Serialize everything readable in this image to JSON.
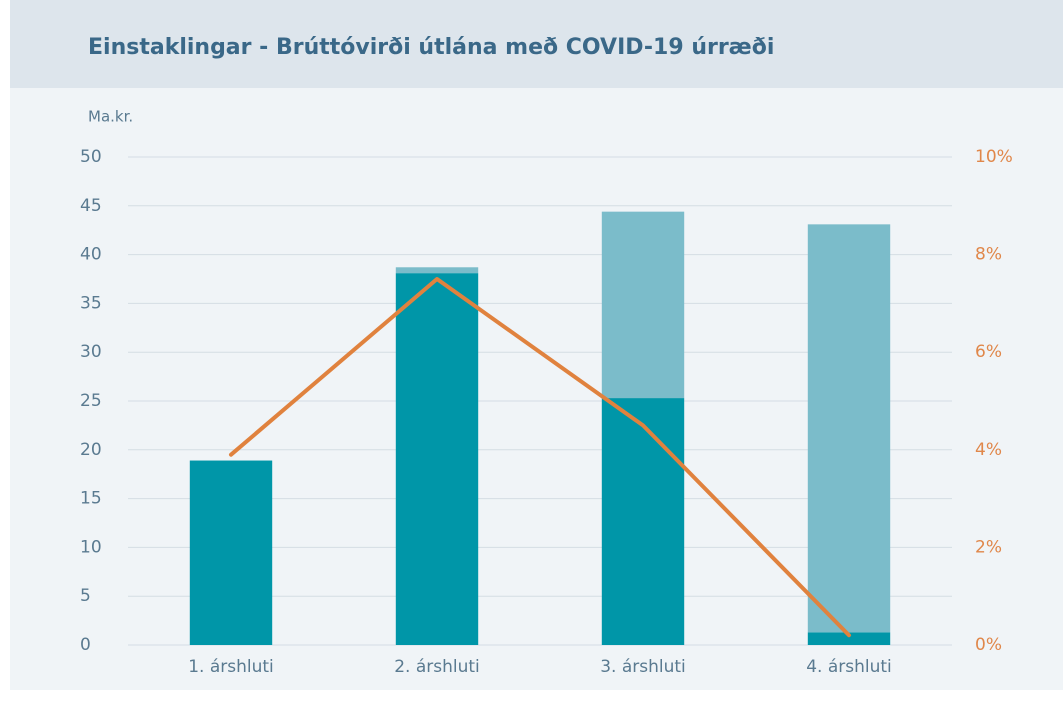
{
  "chart_data": {
    "type": "bar",
    "stacked": true,
    "title": "Einstaklingar - Brúttóvirði útlána með COVID-19 úrræði",
    "y_label": "Ma.kr.",
    "categories": [
      "1. árshluti",
      "2. árshluti",
      "3. árshluti",
      "4. árshluti"
    ],
    "series": [
      {
        "color": "#0096a8",
        "values": [
          18.9,
          38.1,
          25.3,
          1.3
        ]
      },
      {
        "color": "#7bbcca",
        "values": [
          0,
          0.6,
          19.1,
          41.8
        ]
      },
      {
        "color": "#e0823e",
        "type": "line",
        "axis": "y2",
        "values": [
          3.9,
          7.5,
          4.5,
          0.2
        ]
      }
    ],
    "ylim": [
      0,
      50
    ],
    "yticks": [
      0,
      5,
      10,
      15,
      20,
      25,
      30,
      35,
      40,
      45,
      50
    ],
    "y2lim": [
      0,
      10
    ],
    "y2ticks": [
      {
        "value": 0,
        "label": "0%"
      },
      {
        "value": 2,
        "label": "2%"
      },
      {
        "value": 4,
        "label": "4%"
      },
      {
        "value": 6,
        "label": "6%"
      },
      {
        "value": 8,
        "label": "8%"
      },
      {
        "value": 10,
        "label": "10%"
      }
    ],
    "grid": true
  }
}
